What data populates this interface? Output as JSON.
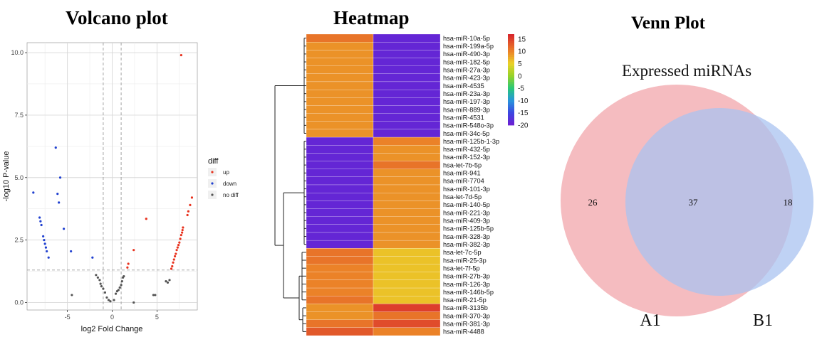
{
  "volcano": {
    "title": "Volcano plot",
    "xlabel": "log2 Fold Change",
    "ylabel": "-log10 P-value",
    "x_ticks": [
      "-5",
      "0",
      "5"
    ],
    "y_ticks": [
      "0.0",
      "2.5",
      "5.0",
      "7.5",
      "10.0"
    ],
    "legend_title": "diff",
    "legend_items": [
      {
        "label": "up",
        "color": "#e8321e"
      },
      {
        "label": "down",
        "color": "#2040d0"
      },
      {
        "label": "no diff",
        "color": "#555555"
      }
    ]
  },
  "heatmap": {
    "title": "Heatmap",
    "legend_ticks": [
      "15",
      "10",
      "5",
      "0",
      "-5",
      "-10",
      "-15",
      "-20"
    ]
  },
  "venn": {
    "title": "Venn Plot",
    "subtitle": "Expressed miRNAs",
    "left_label": "A1",
    "right_label": "B1",
    "left_only": "26",
    "overlap": "37",
    "right_only": "18",
    "left_color": "#f2a6ab",
    "right_color": "#a9c3f0"
  },
  "chart_data": [
    {
      "type": "scatter",
      "title": "Volcano plot",
      "xlabel": "log2 Fold Change",
      "ylabel": "-log10 P-value",
      "xlim": [
        -9.5,
        9.5
      ],
      "ylim": [
        -0.3,
        10.4
      ],
      "thresholds": {
        "x": [
          -1,
          1
        ],
        "y": 1.3
      },
      "series": [
        {
          "name": "up",
          "color": "#e8321e",
          "points": [
            [
              7.7,
              9.9
            ],
            [
              8.9,
              4.2
            ],
            [
              8.7,
              3.9
            ],
            [
              8.5,
              3.65
            ],
            [
              8.4,
              3.5
            ],
            [
              3.8,
              3.35
            ],
            [
              7.9,
              3.0
            ],
            [
              7.85,
              2.9
            ],
            [
              7.8,
              2.8
            ],
            [
              7.7,
              2.7
            ],
            [
              7.6,
              2.55
            ],
            [
              7.5,
              2.4
            ],
            [
              7.4,
              2.3
            ],
            [
              7.3,
              2.2
            ],
            [
              7.2,
              2.1
            ],
            [
              2.4,
              2.1
            ],
            [
              7.1,
              1.95
            ],
            [
              7.0,
              1.85
            ],
            [
              6.9,
              1.72
            ],
            [
              6.8,
              1.6
            ],
            [
              6.7,
              1.45
            ],
            [
              6.6,
              1.35
            ],
            [
              1.8,
              1.55
            ],
            [
              1.7,
              1.4
            ]
          ]
        },
        {
          "name": "down",
          "color": "#2040d0",
          "points": [
            [
              -6.3,
              6.2
            ],
            [
              -5.8,
              5.0
            ],
            [
              -8.8,
              4.4
            ],
            [
              -6.1,
              4.35
            ],
            [
              -5.95,
              4.0
            ],
            [
              -8.1,
              3.4
            ],
            [
              -8.0,
              3.25
            ],
            [
              -7.9,
              3.1
            ],
            [
              -5.4,
              2.95
            ],
            [
              -7.7,
              2.65
            ],
            [
              -7.6,
              2.5
            ],
            [
              -7.5,
              2.35
            ],
            [
              -7.4,
              2.2
            ],
            [
              -7.3,
              2.05
            ],
            [
              -4.6,
              2.05
            ],
            [
              -2.2,
              1.8
            ],
            [
              -7.1,
              1.8
            ]
          ]
        },
        {
          "name": "no diff",
          "color": "#555555",
          "points": [
            [
              -1.8,
              1.1
            ],
            [
              -1.6,
              1.0
            ],
            [
              -1.4,
              0.9
            ],
            [
              -1.3,
              0.75
            ],
            [
              -1.2,
              0.65
            ],
            [
              -1.0,
              0.55
            ],
            [
              -0.8,
              0.4
            ],
            [
              -0.6,
              0.2
            ],
            [
              -0.4,
              0.1
            ],
            [
              -0.2,
              0.05
            ],
            [
              0.2,
              0.1
            ],
            [
              0.4,
              0.35
            ],
            [
              0.55,
              0.45
            ],
            [
              0.7,
              0.5
            ],
            [
              0.85,
              0.6
            ],
            [
              1.0,
              0.7
            ],
            [
              1.1,
              0.85
            ],
            [
              1.2,
              1.0
            ],
            [
              1.3,
              1.05
            ],
            [
              -4.5,
              0.3
            ],
            [
              4.6,
              0.3
            ],
            [
              4.8,
              0.3
            ],
            [
              2.4,
              0.0
            ],
            [
              6.2,
              0.8
            ],
            [
              6.0,
              0.85
            ],
            [
              6.4,
              0.9
            ]
          ]
        }
      ]
    },
    {
      "type": "heatmap",
      "title": "Heatmap",
      "colorbar_range": [
        -20,
        17
      ],
      "rows": [
        {
          "label": "hsa-miR-10a-5p",
          "values": [
            11,
            -19
          ]
        },
        {
          "label": "hsa-miR-199a-5p",
          "values": [
            9,
            -19
          ]
        },
        {
          "label": "hsa-miR-490-3p",
          "values": [
            9,
            -19
          ]
        },
        {
          "label": "hsa-miR-182-5p",
          "values": [
            9,
            -19
          ]
        },
        {
          "label": "hsa-miR-27a-3p",
          "values": [
            9,
            -19
          ]
        },
        {
          "label": "hsa-miR-423-3p",
          "values": [
            9,
            -19
          ]
        },
        {
          "label": "hsa-miR-4535",
          "values": [
            9,
            -19
          ]
        },
        {
          "label": "hsa-miR-23a-3p",
          "values": [
            9,
            -19
          ]
        },
        {
          "label": "hsa-miR-197-3p",
          "values": [
            9,
            -19
          ]
        },
        {
          "label": "hsa-miR-889-3p",
          "values": [
            9,
            -19
          ]
        },
        {
          "label": "hsa-miR-4531",
          "values": [
            9,
            -19
          ]
        },
        {
          "label": "hsa-miR-548o-3p",
          "values": [
            9,
            -19
          ]
        },
        {
          "label": "hsa-miR-34c-5p",
          "values": [
            9,
            -19
          ]
        },
        {
          "label": "hsa-miR-125b-1-3p",
          "values": [
            -19,
            10
          ]
        },
        {
          "label": "hsa-miR-432-5p",
          "values": [
            -19,
            9
          ]
        },
        {
          "label": "hsa-miR-152-3p",
          "values": [
            -19,
            9
          ]
        },
        {
          "label": "hsa-let-7b-5p",
          "values": [
            -19,
            11
          ]
        },
        {
          "label": "hsa-miR-941",
          "values": [
            -19,
            9
          ]
        },
        {
          "label": "hsa-miR-7704",
          "values": [
            -19,
            9
          ]
        },
        {
          "label": "hsa-miR-101-3p",
          "values": [
            -19,
            9
          ]
        },
        {
          "label": "hsa-let-7d-5p",
          "values": [
            -19,
            9
          ]
        },
        {
          "label": "hsa-miR-140-5p",
          "values": [
            -19,
            9
          ]
        },
        {
          "label": "hsa-miR-221-3p",
          "values": [
            -19,
            9
          ]
        },
        {
          "label": "hsa-miR-409-3p",
          "values": [
            -19,
            9
          ]
        },
        {
          "label": "hsa-miR-125b-5p",
          "values": [
            -19,
            9
          ]
        },
        {
          "label": "hsa-miR-328-3p",
          "values": [
            -19,
            9
          ]
        },
        {
          "label": "hsa-miR-382-3p",
          "values": [
            -19,
            9
          ]
        },
        {
          "label": "hsa-let-7c-5p",
          "values": [
            11,
            6
          ]
        },
        {
          "label": "hsa-miR-25-3p",
          "values": [
            11,
            6
          ]
        },
        {
          "label": "hsa-let-7f-5p",
          "values": [
            10,
            6
          ]
        },
        {
          "label": "hsa-miR-27b-3p",
          "values": [
            10,
            6
          ]
        },
        {
          "label": "hsa-miR-126-3p",
          "values": [
            10,
            6
          ]
        },
        {
          "label": "hsa-miR-146b-5p",
          "values": [
            10,
            6
          ]
        },
        {
          "label": "hsa-miR-21-5p",
          "values": [
            11,
            6
          ]
        },
        {
          "label": "hsa-miR-3135b",
          "values": [
            9,
            15
          ]
        },
        {
          "label": "hsa-miR-370-3p",
          "values": [
            9,
            11
          ]
        },
        {
          "label": "hsa-miR-381-3p",
          "values": [
            11,
            14
          ]
        },
        {
          "label": "hsa-miR-4488",
          "values": [
            13,
            10
          ]
        }
      ]
    },
    {
      "type": "venn",
      "title": "Venn Plot",
      "subtitle": "Expressed miRNAs",
      "sets": [
        {
          "name": "A1",
          "only": 26
        },
        {
          "name": "B1",
          "only": 18
        }
      ],
      "intersection": 37
    }
  ]
}
